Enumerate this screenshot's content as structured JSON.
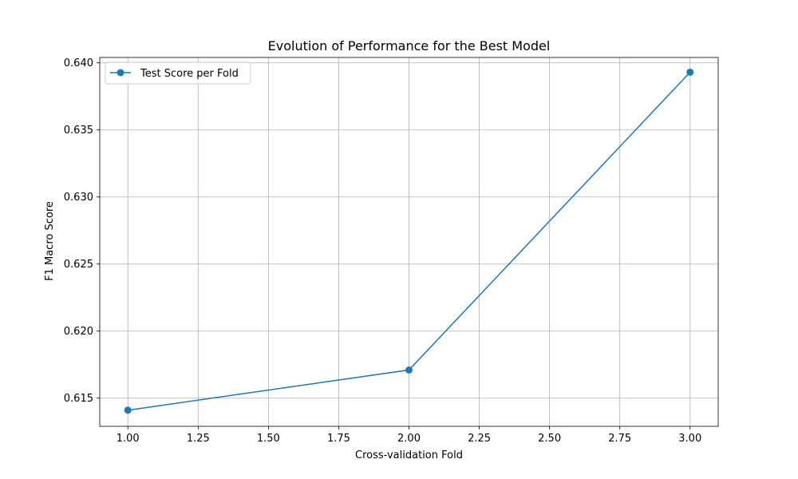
{
  "chart_data": {
    "type": "line",
    "title": "Evolution of Performance for the Best Model",
    "xlabel": "Cross-validation Fold",
    "ylabel": "F1 Macro Score",
    "xlim": [
      0.9,
      3.1
    ],
    "ylim": [
      0.6129,
      0.6404
    ],
    "x_ticks": [
      1.0,
      1.25,
      1.5,
      1.75,
      2.0,
      2.25,
      2.5,
      2.75,
      3.0
    ],
    "x_tick_labels": [
      "1.00",
      "1.25",
      "1.50",
      "1.75",
      "2.00",
      "2.25",
      "2.50",
      "2.75",
      "3.00"
    ],
    "y_ticks": [
      0.615,
      0.62,
      0.625,
      0.63,
      0.635,
      0.64
    ],
    "y_tick_labels": [
      "0.615",
      "0.620",
      "0.625",
      "0.630",
      "0.635",
      "0.640"
    ],
    "grid": true,
    "legend_position": "upper-left",
    "series": [
      {
        "name": "Test Score per Fold",
        "color": "#1f77b4",
        "marker": "circle",
        "x": [
          1,
          2,
          3
        ],
        "y": [
          0.6141,
          0.6171,
          0.6393
        ]
      }
    ]
  }
}
